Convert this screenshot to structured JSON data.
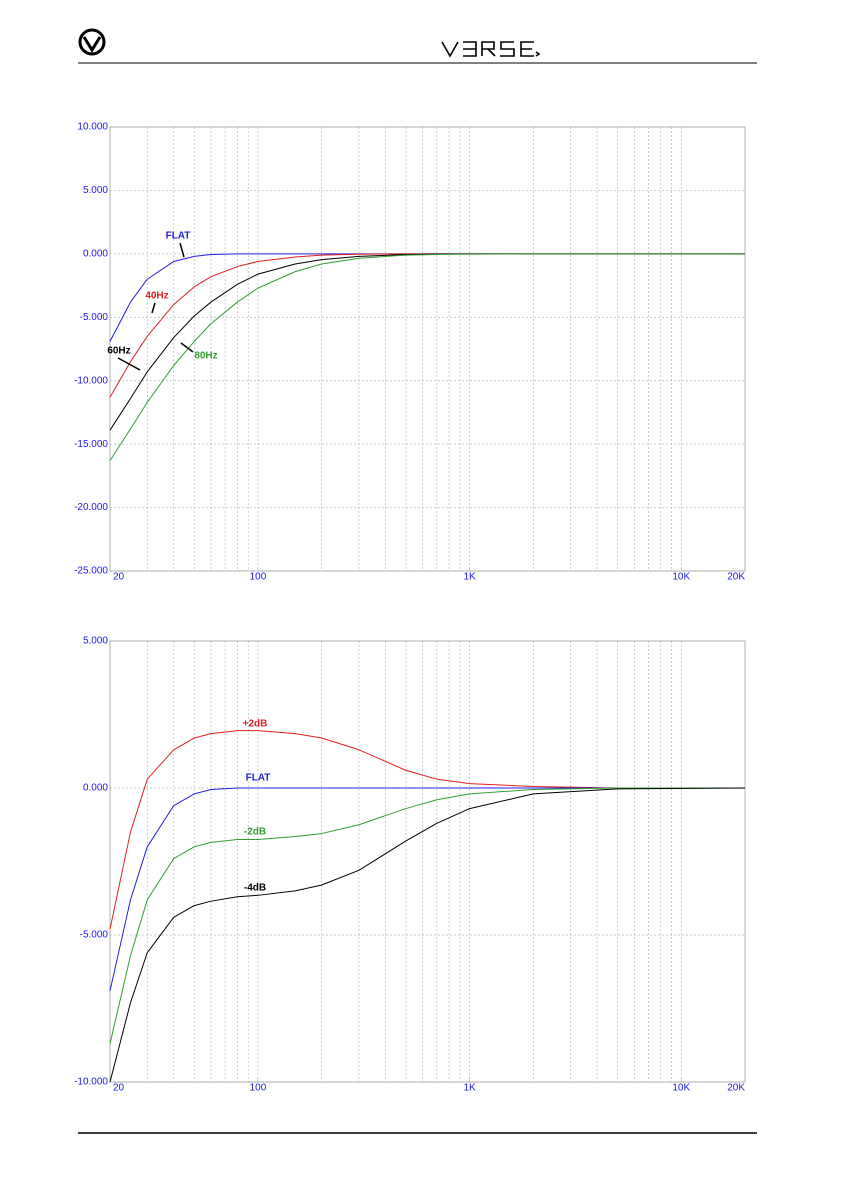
{
  "chart_data": [
    {
      "type": "line",
      "log_x": true,
      "grid": true,
      "x": [
        20,
        25,
        30,
        40,
        50,
        60,
        80,
        100,
        150,
        200,
        300,
        500,
        700,
        1000,
        2000,
        5000,
        20000
      ],
      "xlim": [
        20,
        20000
      ],
      "xticks": [
        20,
        100,
        {
          "value": 1000,
          "label": "1K"
        },
        {
          "value": 10000,
          "label": "10K"
        },
        {
          "value": 20000,
          "label": "20K"
        }
      ],
      "ylim": [
        -25,
        10
      ],
      "yticks": [
        {
          "value": 10,
          "label": "10.000"
        },
        {
          "value": 5,
          "label": "5.000"
        },
        {
          "value": 0,
          "label": "0.000"
        },
        {
          "value": -5,
          "label": "-5.000"
        },
        {
          "value": -10,
          "label": "-10.000"
        },
        {
          "value": -15,
          "label": "-15.000"
        },
        {
          "value": -20,
          "label": "-20.000"
        },
        {
          "value": -25,
          "label": "-25.000"
        }
      ],
      "series": [
        {
          "name": "FLAT",
          "color": "#2020e0",
          "values": [
            -6.9,
            -3.8,
            -2,
            -0.6,
            -0.2,
            -0.05,
            0,
            0,
            0,
            0,
            0,
            0,
            0,
            0,
            0,
            0,
            0
          ]
        },
        {
          "name": "40Hz",
          "color": "#e02020",
          "values": [
            -11.3,
            -8.5,
            -6.5,
            -4,
            -2.6,
            -1.8,
            -1,
            -0.6,
            -0.25,
            -0.1,
            -0.03,
            0,
            0,
            0,
            0,
            0,
            0
          ]
        },
        {
          "name": "60Hz",
          "color": "#000000",
          "values": [
            -13.9,
            -11.4,
            -9.3,
            -6.6,
            -4.9,
            -3.8,
            -2.4,
            -1.6,
            -0.8,
            -0.45,
            -0.2,
            -0.05,
            -0.02,
            0,
            0,
            0,
            0
          ]
        },
        {
          "name": "80Hz",
          "color": "#30a030",
          "values": [
            -16.3,
            -13.8,
            -11.7,
            -8.8,
            -6.9,
            -5.5,
            -3.8,
            -2.7,
            -1.4,
            -0.8,
            -0.35,
            -0.1,
            -0.05,
            -0.02,
            0,
            0,
            0
          ]
        }
      ]
    },
    {
      "type": "line",
      "log_x": true,
      "grid": true,
      "x": [
        20,
        25,
        30,
        40,
        50,
        60,
        80,
        100,
        150,
        200,
        300,
        500,
        700,
        1000,
        2000,
        5000,
        20000
      ],
      "xlim": [
        20,
        20000
      ],
      "xticks": [
        20,
        100,
        {
          "value": 1000,
          "label": "1K"
        },
        {
          "value": 10000,
          "label": "10K"
        },
        {
          "value": 20000,
          "label": "20K"
        }
      ],
      "ylim": [
        -10,
        5
      ],
      "yticks": [
        {
          "value": 5,
          "label": "5.000"
        },
        {
          "value": 0,
          "label": "0.000"
        },
        {
          "value": -5,
          "label": "-5.000"
        },
        {
          "value": -10,
          "label": "-10.000"
        }
      ],
      "series": [
        {
          "name": "+2dB",
          "color": "#e02020",
          "values": [
            -4.8,
            -1.5,
            0.3,
            1.3,
            1.7,
            1.85,
            1.95,
            1.95,
            1.85,
            1.7,
            1.3,
            0.6,
            0.3,
            0.15,
            0.05,
            0,
            0
          ]
        },
        {
          "name": "FLAT",
          "color": "#2020e0",
          "values": [
            -6.9,
            -3.8,
            -2,
            -0.6,
            -0.2,
            -0.05,
            0,
            0,
            0,
            0,
            0,
            0,
            0,
            0,
            0,
            0,
            0
          ]
        },
        {
          "name": "-2dB",
          "color": "#30a030",
          "values": [
            -8.7,
            -5.7,
            -3.8,
            -2.4,
            -2,
            -1.85,
            -1.75,
            -1.75,
            -1.65,
            -1.55,
            -1.25,
            -0.7,
            -0.4,
            -0.2,
            -0.05,
            0,
            0
          ]
        },
        {
          "name": "-4dB",
          "color": "#000000",
          "values": [
            -10,
            -7.3,
            -5.6,
            -4.4,
            -4,
            -3.85,
            -3.7,
            -3.65,
            -3.5,
            -3.3,
            -2.8,
            -1.8,
            -1.2,
            -0.7,
            -0.2,
            -0.03,
            0
          ]
        }
      ]
    }
  ]
}
